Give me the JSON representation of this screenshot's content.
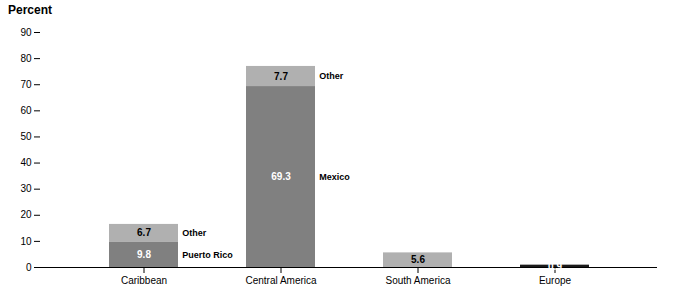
{
  "chart_data": {
    "type": "bar",
    "stacked": true,
    "categories": [
      "Caribbean",
      "Central America",
      "South America",
      "Europe"
    ],
    "series": [
      {
        "values": [
          9.8,
          69.3,
          null,
          null
        ],
        "color": "#808080",
        "annotations": [
          "Puerto Rico",
          "Mexico",
          null,
          null
        ]
      },
      {
        "values": [
          6.7,
          7.7,
          5.6,
          0.9
        ],
        "colors": [
          "#b0b0b0",
          "#b0b0b0",
          "#b0b0b0",
          "#1a1a1a"
        ],
        "annotations": [
          "Other",
          "Other",
          null,
          null
        ]
      }
    ],
    "ylabel": "Percent",
    "ylim": [
      0,
      90
    ],
    "yticks": [
      0,
      10,
      20,
      30,
      40,
      50,
      60,
      70,
      80,
      90
    ],
    "data_labels": true
  }
}
